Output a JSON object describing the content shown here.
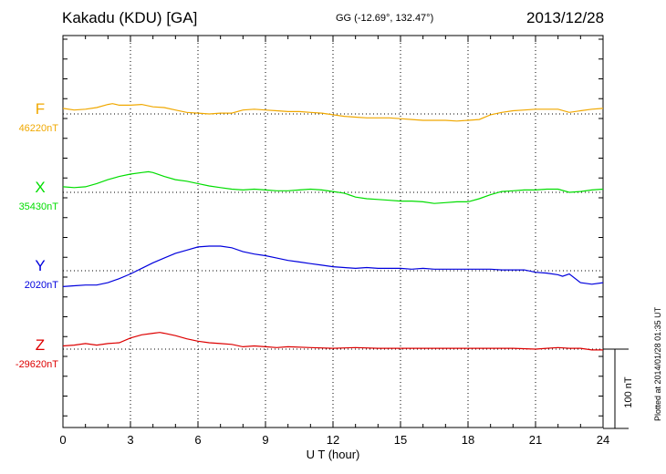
{
  "header": {
    "title": "Kakadu (KDU)  [GA]",
    "coords": "GG (-12.69°, 132.47°)",
    "date": "2013/12/28"
  },
  "footer": {
    "plotted_note": "Plotted at 2014/01/28 01:35 UT"
  },
  "chart_data": {
    "type": "line",
    "xlabel": "U T (hour)",
    "xlim": [
      0,
      24
    ],
    "xticks": [
      "0",
      "3",
      "6",
      "9",
      "12",
      "15",
      "18",
      "21",
      "24"
    ],
    "scale_bar": {
      "label": "100 nT",
      "value_nT": 100
    },
    "grid": true,
    "series": [
      {
        "name": "F",
        "baseline_label": "46220nT",
        "baseline": 46220,
        "color": "#f0a800",
        "x": [
          0,
          0.5,
          1,
          1.5,
          2,
          2.2,
          2.5,
          3,
          3.5,
          4,
          4.5,
          5,
          5.5,
          6,
          6.5,
          7,
          7.5,
          8,
          8.5,
          9,
          9.5,
          10,
          10.5,
          11,
          11.5,
          12,
          12.5,
          13,
          13.5,
          14,
          14.5,
          15,
          15.5,
          16,
          16.5,
          17,
          17.5,
          18,
          18.5,
          19,
          19.5,
          20,
          20.5,
          21,
          21.5,
          22,
          22.5,
          23,
          23.5,
          24
        ],
        "y": [
          46227,
          46225,
          46226,
          46228,
          46232,
          46233,
          46231,
          46231,
          46232,
          46229,
          46228,
          46225,
          46222,
          46221,
          46220,
          46221,
          46221,
          46225,
          46226,
          46225,
          46224,
          46223,
          46223,
          46222,
          46221,
          46219,
          46217,
          46216,
          46215,
          46215,
          46215,
          46214,
          46213,
          46212,
          46212,
          46212,
          46211,
          46212,
          46213,
          46219,
          46222,
          46224,
          46225,
          46226,
          46226,
          46226,
          46222,
          46224,
          46226,
          46227
        ]
      },
      {
        "name": "X",
        "baseline_label": "35430nT",
        "baseline": 35430,
        "color": "#00dd00",
        "x": [
          0,
          0.5,
          1,
          1.5,
          2,
          2.5,
          3,
          3.5,
          3.8,
          4,
          4.5,
          5,
          5.5,
          6,
          6.5,
          7,
          7.5,
          8,
          8.5,
          9,
          9.5,
          10,
          10.5,
          11,
          11.5,
          12,
          12.5,
          13,
          13.5,
          14,
          14.5,
          15,
          15.5,
          16,
          16.5,
          17,
          17.5,
          18,
          18.5,
          19,
          19.5,
          20,
          20.5,
          21,
          21.5,
          22,
          22.5,
          23,
          23.5,
          24
        ],
        "y": [
          35437,
          35436,
          35437,
          35441,
          35446,
          35450,
          35453,
          35455,
          35456,
          35455,
          35450,
          35446,
          35444,
          35441,
          35438,
          35436,
          35434,
          35433,
          35434,
          35433,
          35432,
          35432,
          35433,
          35434,
          35433,
          35431,
          35429,
          35424,
          35422,
          35421,
          35420,
          35419,
          35419,
          35418,
          35416,
          35417,
          35418,
          35418,
          35422,
          35427,
          35431,
          35432,
          35433,
          35433,
          35434,
          35434,
          35430,
          35431,
          35433,
          35434
        ]
      },
      {
        "name": "Y",
        "baseline_label": "2020nT",
        "baseline": 2020,
        "color": "#0000dd",
        "x": [
          0,
          0.5,
          1,
          1.5,
          2,
          2.5,
          3,
          3.5,
          4,
          4.5,
          5,
          5.5,
          6,
          6.5,
          7,
          7.5,
          8,
          8.5,
          9,
          9.5,
          10,
          10.5,
          11,
          11.5,
          12,
          12.5,
          13,
          13.5,
          14,
          14.5,
          15,
          15.5,
          16,
          16.5,
          17,
          17.5,
          18,
          18.5,
          19,
          19.5,
          20,
          20.5,
          21,
          21.5,
          22,
          22.2,
          22.5,
          23,
          23.5,
          24
        ],
        "y": [
          2000,
          2001,
          2002,
          2002,
          2005,
          2010,
          2016,
          2023,
          2030,
          2036,
          2042,
          2046,
          2050,
          2051,
          2051,
          2049,
          2044,
          2041,
          2039,
          2036,
          2033,
          2031,
          2029,
          2027,
          2025,
          2024,
          2023,
          2024,
          2023,
          2023,
          2023,
          2022,
          2023,
          2022,
          2022,
          2022,
          2022,
          2022,
          2022,
          2021,
          2021,
          2021,
          2018,
          2017,
          2015,
          2013,
          2016,
          2005,
          2003,
          2005
        ]
      },
      {
        "name": "Z",
        "baseline_label": "-29620nT",
        "baseline": -29620,
        "color": "#dd0000",
        "x": [
          0,
          0.5,
          1,
          1.5,
          2,
          2.5,
          3,
          3.5,
          4,
          4.3,
          4.5,
          5,
          5.5,
          6,
          6.5,
          7,
          7.5,
          8,
          8.5,
          9,
          9.5,
          10,
          11,
          12,
          13,
          14,
          15,
          16,
          17,
          18,
          19,
          20,
          21,
          21.5,
          22,
          22.5,
          23,
          23.5,
          24
        ],
        "y": [
          -29616,
          -29615,
          -29613,
          -29615,
          -29613,
          -29612,
          -29606,
          -29602,
          -29600,
          -29599,
          -29600,
          -29603,
          -29607,
          -29610,
          -29612,
          -29613,
          -29614,
          -29617,
          -29616,
          -29617,
          -29618,
          -29617,
          -29618,
          -29619,
          -29618,
          -29619,
          -29619,
          -29619,
          -29619,
          -29619,
          -29619,
          -29619,
          -29620,
          -29619,
          -29618,
          -29619,
          -29619,
          -29621,
          -29621
        ]
      }
    ]
  }
}
